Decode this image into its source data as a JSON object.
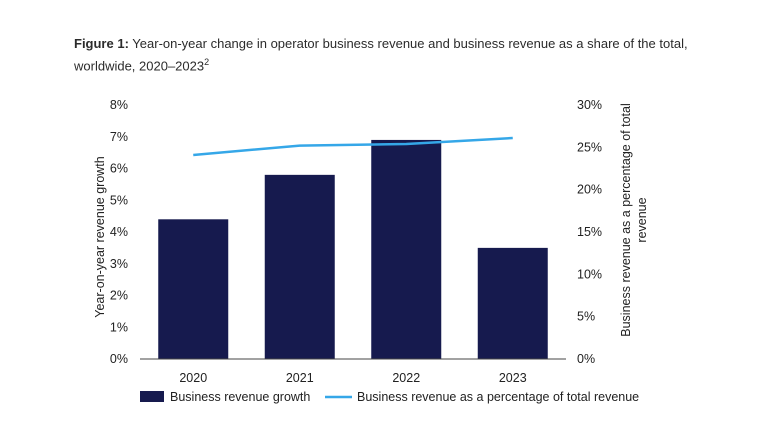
{
  "caption": {
    "label": "Figure 1:",
    "text": "Year-on-year change in operator business revenue and business revenue as a share of the total, worldwide, 2020–2023",
    "superscript": "2"
  },
  "chart_data": {
    "type": "bar",
    "categories": [
      "2020",
      "2021",
      "2022",
      "2023"
    ],
    "series": [
      {
        "name": "Business revenue growth",
        "type": "bar",
        "axis": "left",
        "color": "#161a4e",
        "values": [
          4.4,
          5.8,
          6.9,
          3.5
        ]
      },
      {
        "name": "Business revenue as a percentage of total revenue",
        "type": "line",
        "axis": "right",
        "color": "#35a7e8",
        "values": [
          24.1,
          25.2,
          25.4,
          26.1
        ]
      }
    ],
    "ylabel": "Year-on-year revenue growth",
    "ylabel_right": "Business revenue as a percentage of total revenue",
    "ylim": [
      0,
      8
    ],
    "ylim_right": [
      0,
      30
    ],
    "yticks": [
      "0%",
      "1%",
      "2%",
      "3%",
      "4%",
      "5%",
      "6%",
      "7%",
      "8%"
    ],
    "yticks_right": [
      "0%",
      "5%",
      "10%",
      "15%",
      "20%",
      "25%",
      "30%"
    ],
    "grid": false,
    "legend_position": "bottom"
  }
}
